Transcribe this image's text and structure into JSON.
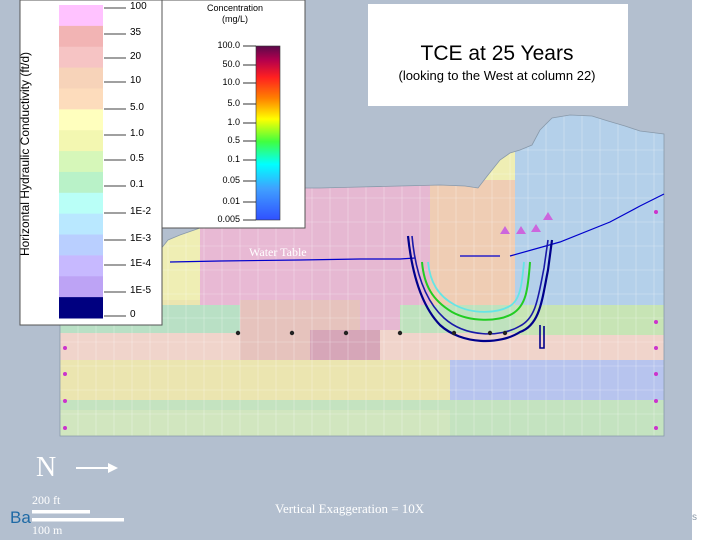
{
  "title": {
    "main": "TCE at 25 Years",
    "sub": "(looking to the West at column 22)"
  },
  "k_legend": {
    "axis_label": "Horizontal Hydraulic Conductivity (ft/d)",
    "labels": [
      "100",
      "35",
      "20",
      "10",
      "5.0",
      "1.0",
      "0.5",
      "0.1",
      "1E-2",
      "1E-3",
      "1E-4",
      "1E-5",
      "0"
    ],
    "colors": [
      "#ffc2ff",
      "#f2b4b4",
      "#f6c4c4",
      "#f7d3b9",
      "#fddcbc",
      "#ffffbe",
      "#f3f7b1",
      "#d6f7b9",
      "#b9f2c8",
      "#b9fff7",
      "#b9e8ff",
      "#b9cfff",
      "#c7b9ff",
      "#bda3f5",
      "#000080"
    ]
  },
  "conc_legend": {
    "header": "Concentration\n(mg/L)",
    "labels": [
      "100.0",
      "50.0",
      "10.0",
      "5.0",
      "1.0",
      "0.5",
      "0.1",
      "0.05",
      "0.01",
      "0.005"
    ]
  },
  "annotations": {
    "water_table": "Water Table",
    "north": "N",
    "scale_ft": "200 ft",
    "scale_m": "100 m",
    "vertical_exaggeration": "Vertical Exaggeration = 10X",
    "corner_fragment_left": "Ba",
    "corner_fragment_right": "s"
  },
  "colors": {
    "frame_bg": "#b3bfcf",
    "water_table": "#0000cc",
    "plume_outer": "#00008b",
    "plume_mid": "#22cc22",
    "plume_inner": "#66e5e5",
    "marker": "#cc66dd"
  }
}
